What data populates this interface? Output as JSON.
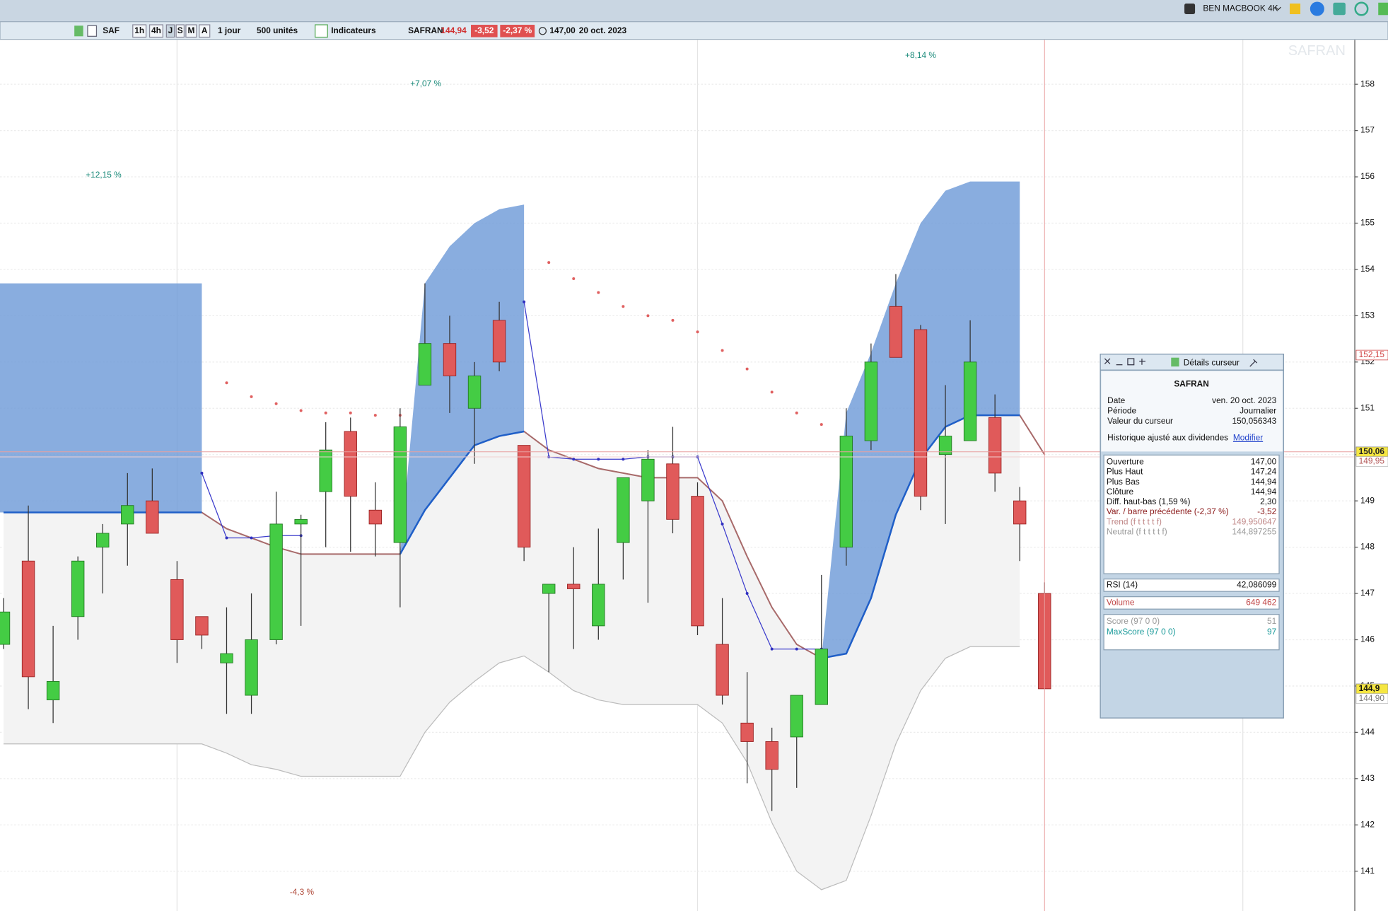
{
  "top_bar": {
    "user": "BEN MACBOOK 4K"
  },
  "toolbar": {
    "symbol": "SAF",
    "periods": [
      "1h",
      "4h",
      "J",
      "S",
      "M",
      "A"
    ],
    "interval": "1 jour",
    "units": "500 unités",
    "indicators": "Indicateurs",
    "name": "SAFRAN",
    "last": "144,94",
    "change": "-3,52",
    "change_pct": "-2,37 %",
    "open": "147,00",
    "date": "20 oct. 2023"
  },
  "chart_data": {
    "type": "candlestick",
    "watermark": "SAFRAN",
    "ylim": [
      140.14,
      158.96
    ],
    "yticks": [
      141,
      142,
      143,
      144,
      145,
      146,
      147,
      148,
      149,
      150,
      151,
      152,
      153,
      154,
      155,
      156,
      157,
      158
    ],
    "grid": true,
    "up_color": "#44cc44",
    "down_color": "#e05a5a",
    "candles": [
      {
        "open": 145.9,
        "high": 146.9,
        "low": 145.8,
        "close": 146.6
      },
      {
        "open": 147.7,
        "high": 148.9,
        "low": 144.5,
        "close": 145.2
      },
      {
        "open": 144.7,
        "high": 146.3,
        "low": 144.2,
        "close": 145.1
      },
      {
        "open": 146.5,
        "high": 147.8,
        "low": 146.0,
        "close": 147.7
      },
      {
        "open": 148.0,
        "high": 148.5,
        "low": 147.0,
        "close": 148.3
      },
      {
        "open": 148.5,
        "high": 149.6,
        "low": 147.6,
        "close": 148.9
      },
      {
        "open": 149.0,
        "high": 149.7,
        "low": 148.3,
        "close": 148.3
      },
      {
        "open": 147.3,
        "high": 147.7,
        "low": 145.5,
        "close": 146.0
      },
      {
        "open": 146.5,
        "high": 146.5,
        "low": 145.8,
        "close": 146.1
      },
      {
        "open": 145.5,
        "high": 146.7,
        "low": 144.4,
        "close": 145.7
      },
      {
        "open": 144.8,
        "high": 147.0,
        "low": 144.4,
        "close": 146.0
      },
      {
        "open": 146.0,
        "high": 149.2,
        "low": 145.9,
        "close": 148.5
      },
      {
        "open": 148.5,
        "high": 148.7,
        "low": 146.3,
        "close": 148.6
      },
      {
        "open": 149.2,
        "high": 150.7,
        "low": 148.0,
        "close": 150.1
      },
      {
        "open": 150.5,
        "high": 150.8,
        "low": 147.9,
        "close": 149.1
      },
      {
        "open": 148.8,
        "high": 149.4,
        "low": 147.8,
        "close": 148.5
      },
      {
        "open": 148.1,
        "high": 151.0,
        "low": 146.7,
        "close": 150.6
      },
      {
        "open": 151.5,
        "high": 153.7,
        "low": 151.5,
        "close": 152.4
      },
      {
        "open": 152.4,
        "high": 153.0,
        "low": 150.9,
        "close": 151.7
      },
      {
        "open": 151.0,
        "high": 152.0,
        "low": 149.8,
        "close": 151.7
      },
      {
        "open": 152.9,
        "high": 153.3,
        "low": 151.8,
        "close": 152.0
      },
      {
        "open": 150.2,
        "high": 150.2,
        "low": 147.7,
        "close": 148.0
      },
      {
        "open": 147.0,
        "high": 147.2,
        "low": 145.3,
        "close": 147.2
      },
      {
        "open": 147.2,
        "high": 148.0,
        "low": 145.8,
        "close": 147.1
      },
      {
        "open": 146.3,
        "high": 148.4,
        "low": 146.0,
        "close": 147.2
      },
      {
        "open": 148.1,
        "high": 149.5,
        "low": 147.3,
        "close": 149.5
      },
      {
        "open": 149.0,
        "high": 150.1,
        "low": 146.8,
        "close": 149.9
      },
      {
        "open": 149.8,
        "high": 150.6,
        "low": 148.3,
        "close": 148.6
      },
      {
        "open": 149.1,
        "high": 149.4,
        "low": 146.1,
        "close": 146.3
      },
      {
        "open": 145.9,
        "high": 146.9,
        "low": 144.6,
        "close": 144.8
      },
      {
        "open": 144.2,
        "high": 145.3,
        "low": 142.9,
        "close": 143.8
      },
      {
        "open": 143.8,
        "high": 144.1,
        "low": 142.3,
        "close": 143.2
      },
      {
        "open": 143.9,
        "high": 144.8,
        "low": 142.8,
        "close": 144.8
      },
      {
        "open": 144.6,
        "high": 147.4,
        "low": 144.6,
        "close": 145.8
      },
      {
        "open": 148.0,
        "high": 151.0,
        "low": 147.6,
        "close": 150.4
      },
      {
        "open": 150.3,
        "high": 152.4,
        "low": 150.1,
        "close": 152.0
      },
      {
        "open": 153.2,
        "high": 153.9,
        "low": 152.1,
        "close": 152.1
      },
      {
        "open": 152.7,
        "high": 152.8,
        "low": 148.8,
        "close": 149.1
      },
      {
        "open": 150.0,
        "high": 151.5,
        "low": 148.5,
        "close": 150.4
      },
      {
        "open": 150.3,
        "high": 152.9,
        "low": 150.3,
        "close": 152.0
      },
      {
        "open": 150.8,
        "high": 151.3,
        "low": 149.2,
        "close": 149.6
      },
      {
        "open": 149.0,
        "high": 149.3,
        "low": 147.7,
        "close": 148.5
      },
      {
        "open": 147.0,
        "high": 147.24,
        "low": 144.94,
        "close": 144.94
      }
    ],
    "line": [
      148.75,
      148.75,
      148.75,
      148.75,
      148.75,
      148.75,
      148.75,
      148.75,
      148.75,
      148.4,
      148.2,
      148.0,
      147.85,
      147.85,
      147.85,
      147.85,
      147.85,
      148.8,
      149.5,
      150.2,
      150.4,
      150.5,
      150.1,
      149.9,
      149.7,
      149.6,
      149.5,
      149.5,
      149.5,
      149.0,
      147.8,
      146.7,
      145.9,
      145.6,
      145.7,
      146.9,
      148.7,
      149.9,
      150.6,
      150.85,
      150.85,
      150.85,
      150.0
    ],
    "cloud": [
      153.7,
      153.7,
      153.7,
      153.7,
      153.7,
      153.7,
      153.7,
      153.7,
      153.7,
      null,
      null,
      null,
      null,
      null,
      null,
      null,
      147.85,
      153.7,
      154.5,
      155.0,
      155.3,
      155.4,
      null,
      null,
      null,
      null,
      null,
      null,
      null,
      null,
      null,
      null,
      null,
      145.6,
      150.9,
      152.2,
      153.7,
      155.0,
      155.7,
      155.9,
      155.9,
      155.9,
      null
    ],
    "band": [
      143.75,
      143.75,
      143.75,
      143.75,
      143.75,
      143.75,
      143.75,
      143.75,
      143.75,
      143.55,
      143.3,
      143.2,
      143.05,
      143.05,
      143.05,
      143.05,
      143.05,
      144.0,
      144.65,
      145.1,
      145.5,
      145.65,
      145.3,
      144.9,
      144.7,
      144.6,
      144.6,
      144.6,
      144.6,
      144.2,
      143.35,
      142.05,
      141.0,
      140.6,
      140.8,
      142.2,
      143.75,
      144.9,
      145.6,
      145.85,
      145.85,
      145.85,
      null
    ],
    "sar": [
      null,
      null,
      null,
      null,
      null,
      null,
      null,
      null,
      null,
      151.55,
      151.25,
      151.1,
      150.95,
      150.9,
      150.9,
      150.85,
      150.85,
      null,
      null,
      null,
      null,
      null,
      154.15,
      153.8,
      153.5,
      153.2,
      153.0,
      152.9,
      152.65,
      152.25,
      151.85,
      151.35,
      150.9,
      150.65,
      null,
      null,
      null,
      null,
      null,
      null,
      null,
      null,
      null
    ],
    "signal": [
      null,
      null,
      null,
      null,
      null,
      null,
      null,
      null,
      149.6,
      148.2,
      148.2,
      148.25,
      148.25,
      null,
      null,
      null,
      null,
      null,
      null,
      null,
      null,
      153.3,
      149.95,
      149.9,
      149.9,
      149.9,
      149.95,
      149.95,
      149.95,
      148.5,
      147.0,
      145.8,
      145.8,
      145.8,
      null,
      null,
      null,
      null,
      null,
      null,
      null,
      null,
      null
    ],
    "annotations": [
      "+12,15 %",
      "+7,07 %",
      "+8,14 %",
      "-4,3 %"
    ],
    "price_tags": [
      {
        "value": 152.15,
        "label": "152,15"
      },
      {
        "value": 150.06,
        "label": "150,06"
      },
      {
        "value": 149.95,
        "label": "149,95"
      },
      {
        "value": 144.94,
        "label": "144,9"
      },
      {
        "value": 144.9,
        "label": "144,90"
      }
    ]
  },
  "panel": {
    "title": "Détails curseur",
    "name": "SAFRAN",
    "info": [
      [
        "Date",
        "ven. 20 oct. 2023"
      ],
      [
        "Période",
        "Journalier"
      ],
      [
        "Valeur du curseur",
        "150,056343"
      ]
    ],
    "dividends": "Historique ajusté aux dividendes",
    "modify": "Modifier",
    "values": [
      [
        "Ouverture",
        "147,00"
      ],
      [
        "Plus Haut",
        "147,24"
      ],
      [
        "Plus Bas",
        "144,94"
      ],
      [
        "Clôture",
        "144,94"
      ],
      [
        "Diff. haut-bas (1,59 %)",
        "2,30"
      ],
      [
        "Var. / barre précédente (-2,37 %)",
        "-3,52"
      ],
      [
        "Trend (f t t t t f)",
        "149,950647"
      ],
      [
        "Neutral (f t t t t f)",
        "144,897255"
      ]
    ],
    "rsi": [
      "RSI (14)",
      "42,086099"
    ],
    "volume": [
      "Volume",
      "649 462"
    ],
    "scores": [
      [
        "Score (97 0 0)",
        "51"
      ],
      [
        "MaxScore (97 0 0)",
        "97"
      ]
    ]
  }
}
